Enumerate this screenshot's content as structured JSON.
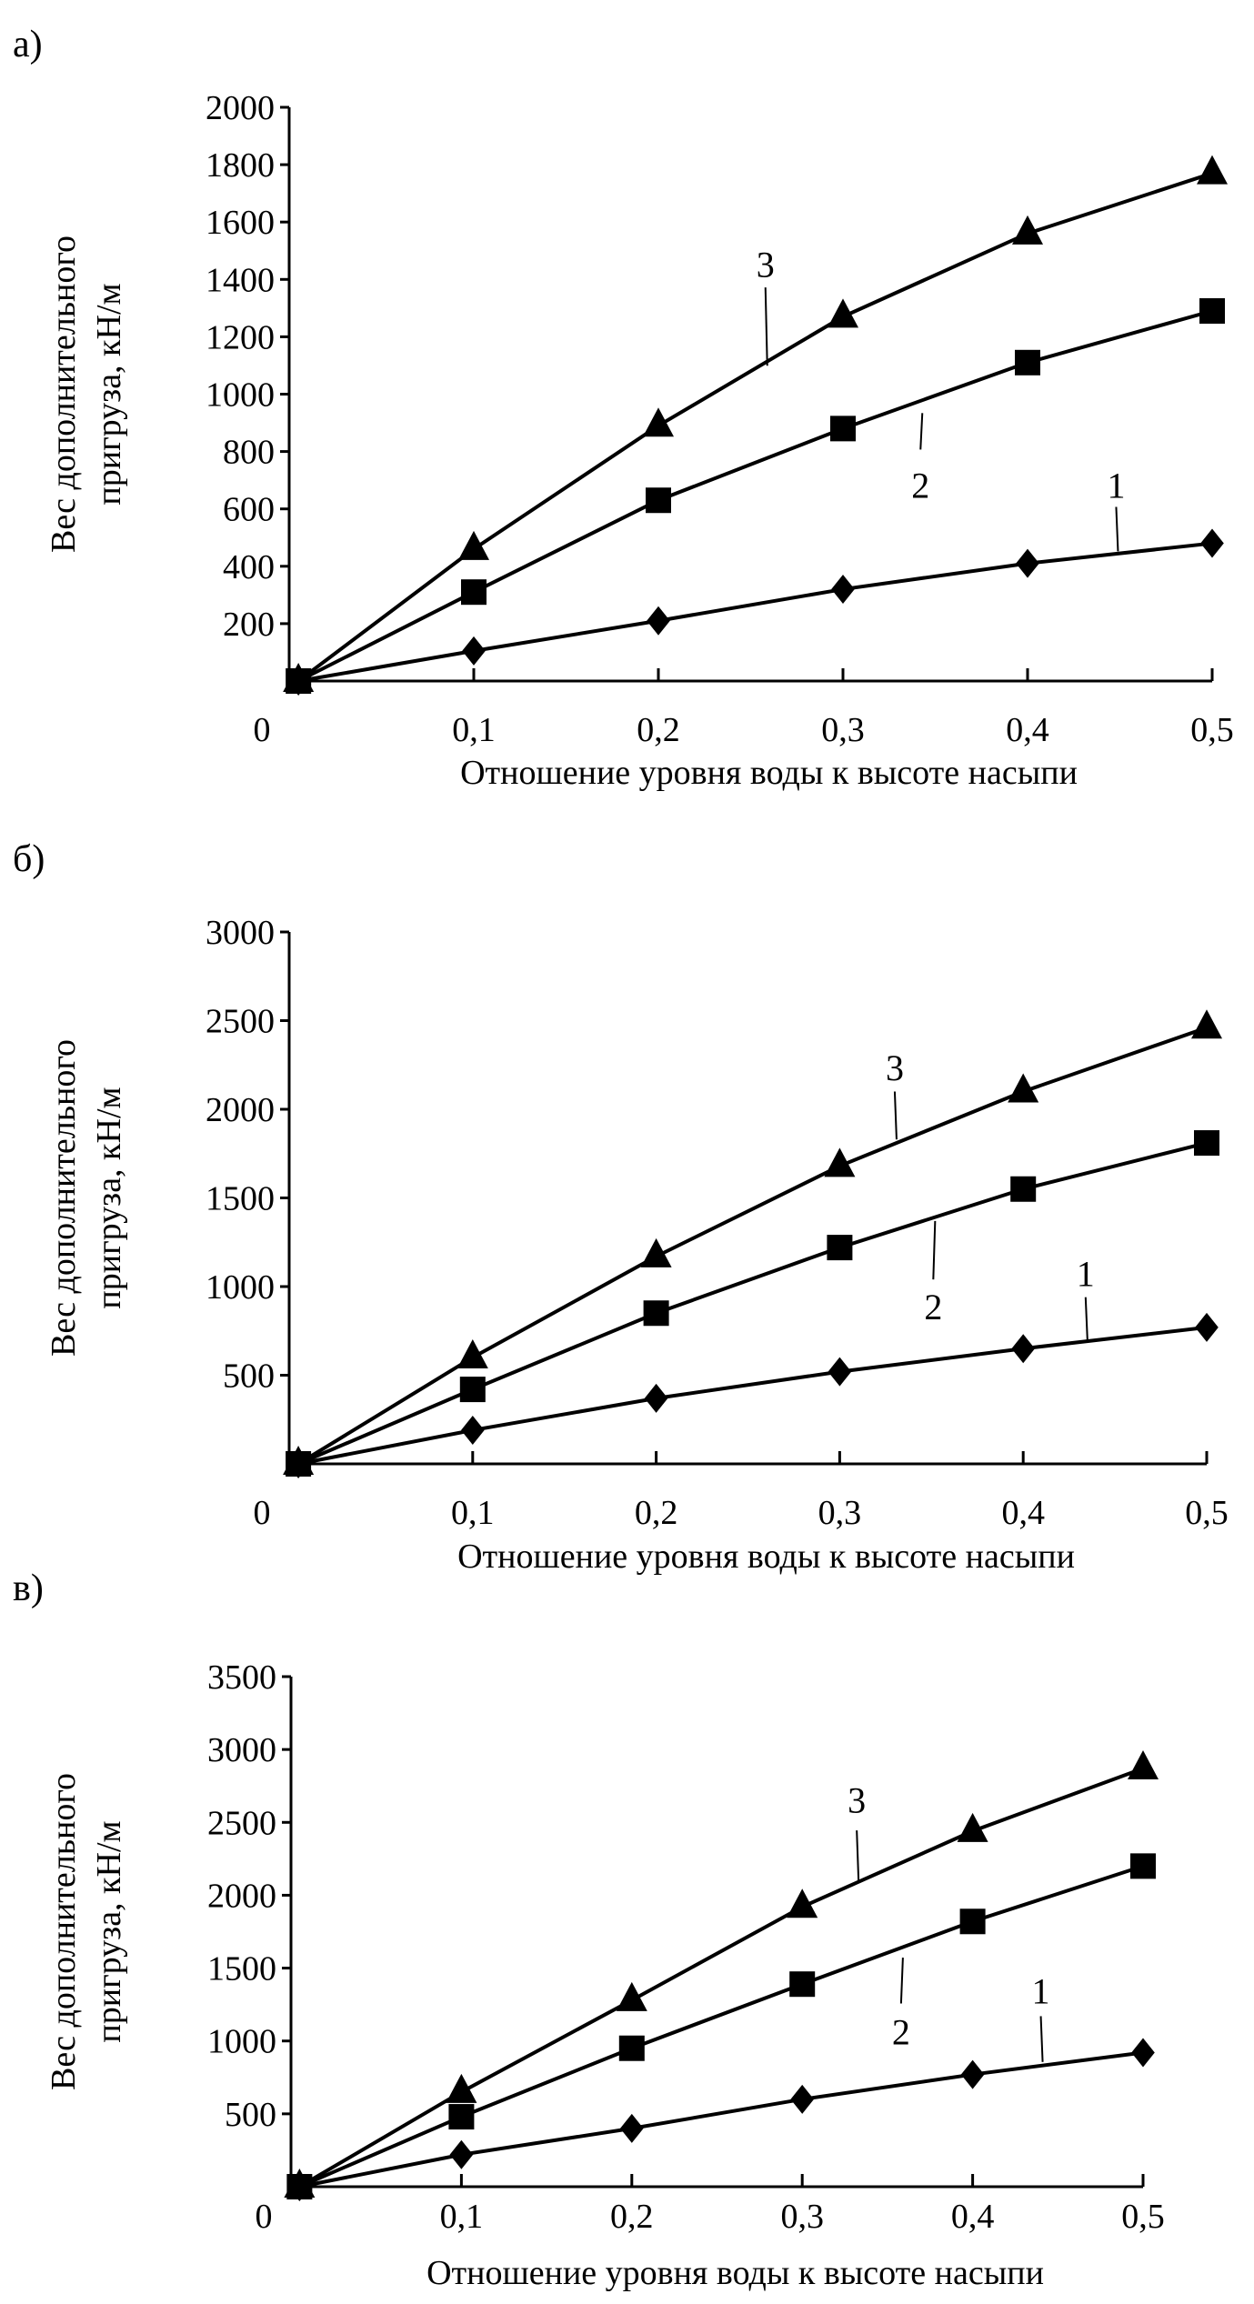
{
  "chart_data": [
    {
      "panel_label": "а)",
      "type": "line",
      "xlabel": "Отношение уровня воды к высоте насыпи",
      "ylabel_lines": [
        "Вес дополнительного",
        "пригруза, кН/м"
      ],
      "x": [
        0,
        0.1,
        0.2,
        0.3,
        0.4,
        0.5
      ],
      "x_tick_labels": [
        "0",
        "0,1",
        "0,2",
        "0,3",
        "0,4",
        "0,5"
      ],
      "y_ticks": [
        200,
        400,
        600,
        800,
        1000,
        1200,
        1400,
        1600,
        1800,
        2000
      ],
      "y_tick_labels": [
        "200",
        "400",
        "600",
        "800",
        "1000",
        "1200",
        "1400",
        "1600",
        "1800",
        "2000"
      ],
      "xlim": [
        0,
        0.5
      ],
      "ylim": [
        0,
        2000
      ],
      "series": [
        {
          "name": "1",
          "marker": "diamond",
          "values": [
            0,
            105,
            210,
            320,
            410,
            480
          ]
        },
        {
          "name": "2",
          "marker": "square",
          "values": [
            0,
            310,
            630,
            880,
            1110,
            1290
          ]
        },
        {
          "name": "3",
          "marker": "triangle",
          "values": [
            0,
            460,
            890,
            1270,
            1560,
            1770
          ]
        }
      ],
      "annotations": [
        {
          "text": "3",
          "x": 0.258,
          "y": 1453,
          "leader_from": 1372,
          "leader_to": 1099
        },
        {
          "text": "2",
          "x": 0.342,
          "y": 683,
          "leader_from": 807,
          "leader_to": 934
        },
        {
          "text": "1",
          "x": 0.448,
          "y": 683,
          "leader_from": 607,
          "leader_to": 452
        }
      ]
    },
    {
      "panel_label": "б)",
      "type": "line",
      "xlabel": "Отношение уровня воды к высоте насыпи",
      "ylabel_lines": [
        "Вес дополнительного",
        "пригруза, кН/м"
      ],
      "x": [
        0,
        0.1,
        0.2,
        0.3,
        0.4,
        0.5
      ],
      "x_tick_labels": [
        "0",
        "0,1",
        "0,2",
        "0,3",
        "0,4",
        "0,5"
      ],
      "y_ticks": [
        500,
        1000,
        1500,
        2000,
        2500,
        3000
      ],
      "y_tick_labels": [
        "500",
        "1000",
        "1500",
        "2000",
        "2500",
        "3000"
      ],
      "xlim": [
        0,
        0.5
      ],
      "ylim": [
        0,
        3000
      ],
      "series": [
        {
          "name": "1",
          "marker": "diamond",
          "values": [
            0,
            190,
            370,
            520,
            650,
            770
          ]
        },
        {
          "name": "2",
          "marker": "square",
          "values": [
            0,
            420,
            850,
            1220,
            1550,
            1810
          ]
        },
        {
          "name": "3",
          "marker": "triangle",
          "values": [
            0,
            600,
            1170,
            1680,
            2100,
            2460
          ]
        }
      ],
      "annotations": [
        {
          "text": "3",
          "x": 0.33,
          "y": 2236,
          "leader_from": 2100,
          "leader_to": 1830
        },
        {
          "text": "2",
          "x": 0.351,
          "y": 888,
          "leader_from": 1040,
          "leader_to": 1370
        },
        {
          "text": "1",
          "x": 0.434,
          "y": 1074,
          "leader_from": 940,
          "leader_to": 700
        }
      ]
    },
    {
      "panel_label": "в)",
      "type": "line",
      "xlabel": "Отношение уровня воды к высоте насыпи",
      "ylabel_lines": [
        "Вес дополнительного",
        "пригруза, кН/м"
      ],
      "x": [
        0,
        0.1,
        0.2,
        0.3,
        0.4,
        0.5
      ],
      "x_tick_labels": [
        "0",
        "0,1",
        "0,2",
        "0,3",
        "0,4",
        "0,5"
      ],
      "y_ticks": [
        500,
        1000,
        1500,
        2000,
        2500,
        3000,
        3500
      ],
      "y_tick_labels": [
        "500",
        "1000",
        "1500",
        "2000",
        "2500",
        "3000",
        "3500"
      ],
      "xlim": [
        0,
        0.5
      ],
      "ylim": [
        0,
        3500
      ],
      "series": [
        {
          "name": "1",
          "marker": "diamond",
          "values": [
            0,
            220,
            400,
            600,
            770,
            920
          ]
        },
        {
          "name": "2",
          "marker": "square",
          "values": [
            0,
            480,
            950,
            1390,
            1820,
            2200
          ]
        },
        {
          "name": "3",
          "marker": "triangle",
          "values": [
            0,
            650,
            1280,
            1920,
            2440,
            2870
          ]
        }
      ],
      "annotations": [
        {
          "text": "3",
          "x": 0.332,
          "y": 2655,
          "leader_from": 2445,
          "leader_to": 2096
        },
        {
          "text": "2",
          "x": 0.358,
          "y": 1065,
          "leader_from": 1257,
          "leader_to": 1572
        },
        {
          "text": "1",
          "x": 0.44,
          "y": 1345,
          "leader_from": 1170,
          "leader_to": 856
        }
      ]
    }
  ]
}
